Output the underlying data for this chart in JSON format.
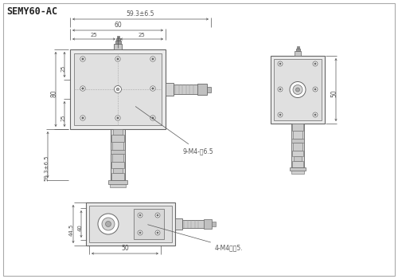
{
  "title": "SEMY60-AC",
  "bg_color": "#ffffff",
  "border_color": "#cccccc",
  "line_color": "#666666",
  "dim_color": "#555555",
  "fill_plate": "#e8e8e8",
  "fill_inner": "#d8d8d8",
  "fill_post": "#d0d0d0",
  "fill_dark": "#999999",
  "fill_med": "#bbbbbb",
  "annotations": {
    "dim_60": "60",
    "dim_59_3_top": "59.3±6.5",
    "dim_25_left": "25",
    "dim_25_right": "25",
    "dim_80": "80",
    "dim_25_upper": "25",
    "dim_25_lower": "25",
    "dim_59_3_left": "59.3±6.5",
    "holes_label": "9-M4-深6.5",
    "dim_50_bot": "50",
    "dim_44_5": "44.5",
    "dim_40": "40",
    "holes_bot": "4-M4深回5.",
    "dim_50_side": "50"
  }
}
